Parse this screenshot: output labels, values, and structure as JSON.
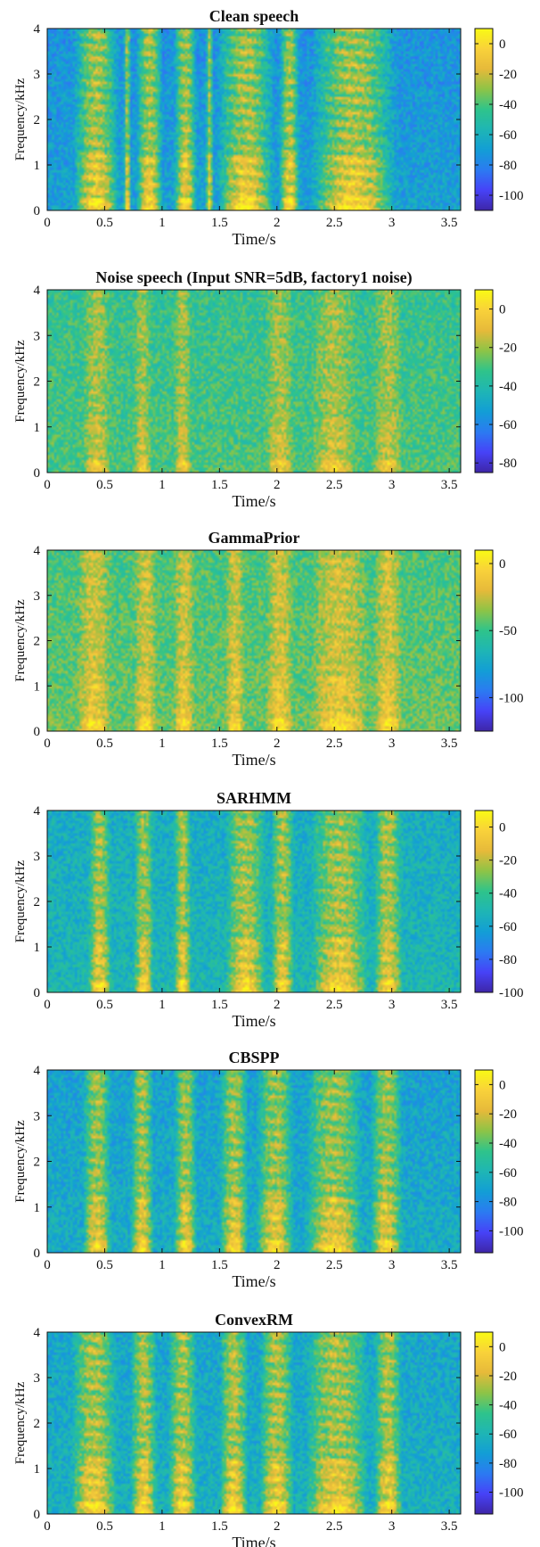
{
  "figure": {
    "colormap": [
      "#3e26a8",
      "#4743f8",
      "#2c7bf2",
      "#139ed6",
      "#1fb6b5",
      "#2fc48b",
      "#8ec447",
      "#e7ba3a",
      "#f9d23a",
      "#f9fb15"
    ]
  },
  "chart_data": [
    {
      "type": "heatmap",
      "title": "Clean speech",
      "xlabel": "Time/s",
      "ylabel": "Frequency/kHz",
      "xlim": [
        0,
        3.6
      ],
      "ylim": [
        0,
        4
      ],
      "xticks": [
        0,
        0.5,
        1,
        1.5,
        2,
        2.5,
        3,
        3.5
      ],
      "xtick_labels": [
        "0",
        "0.5",
        "1",
        "1.5",
        "2",
        "2.5",
        "3",
        "3.5"
      ],
      "yticks": [
        0,
        1,
        2,
        3,
        4
      ],
      "ytick_labels": [
        "0",
        "1",
        "2",
        "3",
        "4"
      ],
      "colorbar": {
        "range": [
          -110,
          10
        ],
        "ticks": [
          0,
          -20,
          -40,
          -60,
          -80,
          -100
        ],
        "tick_labels": [
          "0",
          "-20",
          "-40",
          "-60",
          "-80",
          "-100"
        ]
      },
      "background_level": 0.35,
      "speech_segments": [
        [
          0.22,
          0.62
        ],
        [
          0.66,
          0.72
        ],
        [
          0.77,
          1.0
        ],
        [
          1.1,
          1.3
        ],
        [
          1.38,
          1.44
        ],
        [
          1.48,
          1.98
        ],
        [
          2.02,
          2.2
        ],
        [
          2.3,
          3.05
        ]
      ],
      "active_level": 0.82
    },
    {
      "type": "heatmap",
      "title": "Noise speech (Input SNR=5dB, factory1 noise)",
      "xlabel": "Time/s",
      "ylabel": "Frequency/kHz",
      "xlim": [
        0,
        3.6
      ],
      "ylim": [
        0,
        4
      ],
      "xticks": [
        0,
        0.5,
        1,
        1.5,
        2,
        2.5,
        3,
        3.5
      ],
      "xtick_labels": [
        "0",
        "0.5",
        "1",
        "1.5",
        "2",
        "2.5",
        "3",
        "3.5"
      ],
      "yticks": [
        0,
        1,
        2,
        3,
        4
      ],
      "ytick_labels": [
        "0",
        "1",
        "2",
        "3",
        "4"
      ],
      "colorbar": {
        "range": [
          -85,
          10
        ],
        "ticks": [
          0,
          -20,
          -40,
          -60,
          -80
        ],
        "tick_labels": [
          "0",
          "-20",
          "-40",
          "-60",
          "-80"
        ]
      },
      "background_level": 0.58,
      "speech_segments": [
        [
          0.3,
          0.55
        ],
        [
          0.75,
          0.9
        ],
        [
          1.1,
          1.25
        ],
        [
          1.9,
          2.15
        ],
        [
          2.3,
          2.7
        ],
        [
          2.85,
          3.1
        ]
      ],
      "active_level": 0.75
    },
    {
      "type": "heatmap",
      "title": "GammaPrior",
      "xlabel": "Time/s",
      "ylabel": "Frequency/kHz",
      "xlim": [
        0,
        3.6
      ],
      "ylim": [
        0,
        4
      ],
      "xticks": [
        0,
        0.5,
        1,
        1.5,
        2,
        2.5,
        3,
        3.5
      ],
      "xtick_labels": [
        "0",
        "0.5",
        "1",
        "1.5",
        "2",
        "2.5",
        "3",
        "3.5"
      ],
      "yticks": [
        0,
        1,
        2,
        3,
        4
      ],
      "ytick_labels": [
        "0",
        "1",
        "2",
        "3",
        "4"
      ],
      "colorbar": {
        "range": [
          -125,
          10
        ],
        "ticks": [
          0,
          -50,
          -100
        ],
        "tick_labels": [
          "0",
          "-50",
          "-100"
        ]
      },
      "background_level": 0.62,
      "speech_segments": [
        [
          0.25,
          0.55
        ],
        [
          0.75,
          0.95
        ],
        [
          1.1,
          1.28
        ],
        [
          1.55,
          1.72
        ],
        [
          1.9,
          2.15
        ],
        [
          2.3,
          2.8
        ],
        [
          2.85,
          3.1
        ]
      ],
      "active_level": 0.82
    },
    {
      "type": "heatmap",
      "title": "SARHMM",
      "xlabel": "Time/s",
      "ylabel": "Frequency/kHz",
      "xlim": [
        0,
        3.6
      ],
      "ylim": [
        0,
        4
      ],
      "xticks": [
        0,
        0.5,
        1,
        1.5,
        2,
        2.5,
        3,
        3.5
      ],
      "xtick_labels": [
        "0",
        "0.5",
        "1",
        "1.5",
        "2",
        "2.5",
        "3",
        "3.5"
      ],
      "yticks": [
        0,
        1,
        2,
        3,
        4
      ],
      "ytick_labels": [
        "0",
        "1",
        "2",
        "3",
        "4"
      ],
      "colorbar": {
        "range": [
          -100,
          10
        ],
        "ticks": [
          0,
          -20,
          -40,
          -60,
          -80,
          -100
        ],
        "tick_labels": [
          "0",
          "-20",
          "-40",
          "-60",
          "-80",
          "-100"
        ]
      },
      "background_level": 0.45,
      "speech_segments": [
        [
          0.35,
          0.55
        ],
        [
          0.75,
          0.92
        ],
        [
          1.1,
          1.25
        ],
        [
          1.55,
          1.9
        ],
        [
          1.95,
          2.15
        ],
        [
          2.3,
          2.8
        ],
        [
          2.85,
          3.1
        ]
      ],
      "active_level": 0.8
    },
    {
      "type": "heatmap",
      "title": "CBSPP",
      "xlabel": "Time/s",
      "ylabel": "Frequency/kHz",
      "xlim": [
        0,
        3.6
      ],
      "ylim": [
        0,
        4
      ],
      "xticks": [
        0,
        0.5,
        1,
        1.5,
        2,
        2.5,
        3,
        3.5
      ],
      "xtick_labels": [
        "0",
        "0.5",
        "1",
        "1.5",
        "2",
        "2.5",
        "3",
        "3.5"
      ],
      "yticks": [
        0,
        1,
        2,
        3,
        4
      ],
      "ytick_labels": [
        "0",
        "1",
        "2",
        "3",
        "4"
      ],
      "colorbar": {
        "range": [
          -115,
          10
        ],
        "ticks": [
          0,
          -20,
          -40,
          -60,
          -80,
          -100
        ],
        "tick_labels": [
          "0",
          "-20",
          "-40",
          "-60",
          "-80",
          "-100"
        ]
      },
      "background_level": 0.4,
      "speech_segments": [
        [
          0.3,
          0.55
        ],
        [
          0.72,
          0.92
        ],
        [
          1.1,
          1.3
        ],
        [
          1.5,
          1.75
        ],
        [
          1.82,
          2.15
        ],
        [
          2.25,
          2.75
        ],
        [
          2.82,
          3.1
        ]
      ],
      "active_level": 0.8
    },
    {
      "type": "heatmap",
      "title": "ConvexRM",
      "xlabel": "Time/s",
      "ylabel": "Frequency/kHz",
      "xlim": [
        0,
        3.6
      ],
      "ylim": [
        0,
        4
      ],
      "xticks": [
        0,
        0.5,
        1,
        1.5,
        2,
        2.5,
        3,
        3.5
      ],
      "xtick_labels": [
        "0",
        "0.5",
        "1",
        "1.5",
        "2",
        "2.5",
        "3",
        "3.5"
      ],
      "yticks": [
        0,
        1,
        2,
        3,
        4
      ],
      "ytick_labels": [
        "0",
        "1",
        "2",
        "3",
        "4"
      ],
      "colorbar": {
        "range": [
          -115,
          10
        ],
        "ticks": [
          0,
          -20,
          -40,
          -60,
          -80,
          -100
        ],
        "tick_labels": [
          "0",
          "-20",
          "-40",
          "-60",
          "-80",
          "-100"
        ]
      },
      "background_level": 0.42,
      "speech_segments": [
        [
          0.2,
          0.6
        ],
        [
          0.72,
          0.95
        ],
        [
          1.05,
          1.3
        ],
        [
          1.5,
          1.75
        ],
        [
          1.85,
          2.15
        ],
        [
          2.25,
          2.8
        ],
        [
          2.85,
          3.1
        ]
      ],
      "active_level": 0.82
    }
  ]
}
